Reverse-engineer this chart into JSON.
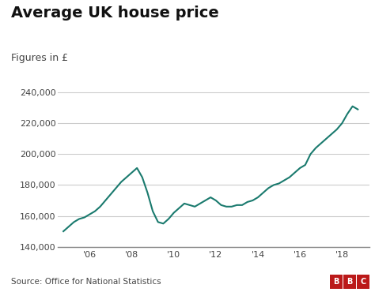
{
  "title": "Average UK house price",
  "subtitle": "Figures in £",
  "source": "Source: Office for National Statistics",
  "line_color": "#1a7a6e",
  "line_width": 1.5,
  "background_color": "#ffffff",
  "ylim": [
    140000,
    245000
  ],
  "yticks": [
    140000,
    160000,
    180000,
    200000,
    220000,
    240000
  ],
  "xtick_labels": [
    "'06",
    "'08",
    "'10",
    "'12",
    "'14",
    "'16",
    "'18"
  ],
  "xtick_positions": [
    2006,
    2008,
    2010,
    2012,
    2014,
    2016,
    2018
  ],
  "grid_color": "#cccccc",
  "title_fontsize": 14,
  "subtitle_fontsize": 9,
  "tick_fontsize": 8,
  "source_fontsize": 7.5,
  "x": [
    2004.75,
    2005.0,
    2005.25,
    2005.5,
    2005.75,
    2006.0,
    2006.25,
    2006.5,
    2006.75,
    2007.0,
    2007.25,
    2007.5,
    2007.75,
    2008.0,
    2008.25,
    2008.5,
    2008.75,
    2009.0,
    2009.25,
    2009.5,
    2009.75,
    2010.0,
    2010.25,
    2010.5,
    2010.75,
    2011.0,
    2011.25,
    2011.5,
    2011.75,
    2012.0,
    2012.25,
    2012.5,
    2012.75,
    2013.0,
    2013.25,
    2013.5,
    2013.75,
    2014.0,
    2014.25,
    2014.5,
    2014.75,
    2015.0,
    2015.25,
    2015.5,
    2015.75,
    2016.0,
    2016.25,
    2016.5,
    2016.75,
    2017.0,
    2017.25,
    2017.5,
    2017.75,
    2018.0,
    2018.25,
    2018.5,
    2018.75
  ],
  "y": [
    150000,
    153000,
    156000,
    158000,
    159000,
    161000,
    163000,
    166000,
    170000,
    174000,
    178000,
    182000,
    185000,
    188000,
    191000,
    185000,
    175000,
    163000,
    156000,
    155000,
    158000,
    162000,
    165000,
    168000,
    167000,
    166000,
    168000,
    170000,
    172000,
    170000,
    167000,
    166000,
    166000,
    167000,
    167000,
    169000,
    170000,
    172000,
    175000,
    178000,
    180000,
    181000,
    183000,
    185000,
    188000,
    191000,
    193000,
    200000,
    204000,
    207000,
    210000,
    213000,
    216000,
    220000,
    226000,
    231000,
    229000
  ],
  "bbc_color": "#bb1919",
  "footer_line_color": "#cccccc"
}
